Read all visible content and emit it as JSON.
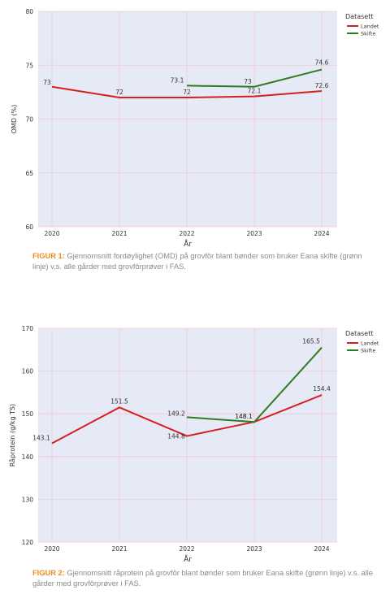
{
  "chart_data": [
    {
      "type": "line",
      "x": [
        "2020",
        "2021",
        "2022",
        "2023",
        "2024"
      ],
      "xlabel": "År",
      "ylabel": "OMD (%)",
      "ylim": [
        60,
        80
      ],
      "yticks": [
        "60",
        "65",
        "70",
        "75",
        "80"
      ],
      "grid": true,
      "legend": {
        "title": "Datasett",
        "placement": "right"
      },
      "series": [
        {
          "name": "Landet",
          "color": "#d62020",
          "x": [
            "2020",
            "2021",
            "2022",
            "2023",
            "2024"
          ],
          "values": [
            73,
            72,
            72,
            72.1,
            72.6
          ],
          "labels": [
            "73",
            "72",
            "72",
            "72.1",
            "72.6"
          ]
        },
        {
          "name": "Skifte",
          "color": "#2e7d1e",
          "x": [
            "2022",
            "2023",
            "2024"
          ],
          "values": [
            73.1,
            73,
            74.6
          ],
          "labels": [
            "73.1",
            "73",
            "74.6"
          ]
        }
      ]
    },
    {
      "type": "line",
      "x": [
        "2020",
        "2021",
        "2022",
        "2023",
        "2024"
      ],
      "xlabel": "År",
      "ylabel": "Råprotein (g/kg TS)",
      "ylim": [
        120,
        170
      ],
      "yticks": [
        "120",
        "130",
        "140",
        "150",
        "160",
        "170"
      ],
      "grid": true,
      "legend": {
        "title": "Datasett",
        "placement": "right"
      },
      "series": [
        {
          "name": "Landet",
          "color": "#d62020",
          "x": [
            "2020",
            "2021",
            "2022",
            "2023",
            "2024"
          ],
          "values": [
            143.1,
            151.5,
            144.8,
            148.1,
            154.4
          ],
          "labels": [
            "143.1",
            "151.5",
            "144.8",
            "148.1",
            "154.4"
          ]
        },
        {
          "name": "Skifte",
          "color": "#2e7d1e",
          "x": [
            "2022",
            "2023",
            "2024"
          ],
          "values": [
            149.2,
            148.1,
            165.5
          ],
          "labels": [
            "149.2",
            "148.1",
            "165.5"
          ]
        }
      ]
    }
  ],
  "captions": [
    {
      "label": "FIGUR 1:",
      "text": " Gjennomsnitt fordøylighet (OMD) på grovfôr blant bønder som bruker Eana skifte (grønn linje) v.s. alle gårder med grovfôrprøver i FAS."
    },
    {
      "label": "FIGUR 2:",
      "text": " Gjennomsnitt råprotein på grovfôr blant bønder som bruker Eana skifte (grønn linje) v.s. alle gårder med grovfôrprøver i FAS."
    }
  ]
}
